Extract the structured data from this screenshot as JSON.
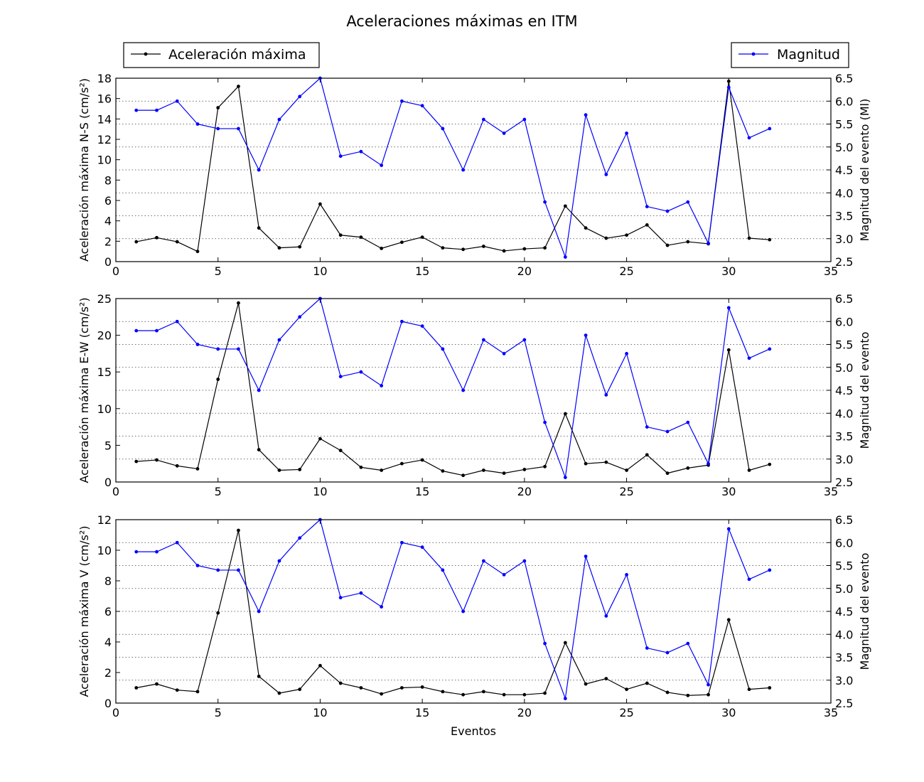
{
  "chart_data": {
    "type": "line",
    "title": "Aceleraciones máximas en ITM",
    "xlabel": "Eventos",
    "xlim": [
      0,
      35
    ],
    "xticks": [
      0,
      5,
      10,
      15,
      20,
      25,
      30,
      35
    ],
    "legend": {
      "left": {
        "label": "Aceleración máxima",
        "color": "#000000",
        "placement": "top-left"
      },
      "right": {
        "label": "Magnitud",
        "color": "#0000ff",
        "placement": "top-right"
      }
    },
    "x": [
      1,
      2,
      3,
      4,
      5,
      6,
      7,
      8,
      9,
      10,
      11,
      12,
      13,
      14,
      15,
      16,
      17,
      18,
      19,
      20,
      21,
      22,
      23,
      24,
      25,
      26,
      27,
      28,
      29,
      30,
      31,
      32
    ],
    "magnitude": {
      "name": "Magnitud",
      "color": "#0000ff",
      "values": [
        5.8,
        5.8,
        6.0,
        5.5,
        5.4,
        5.4,
        4.5,
        5.6,
        6.1,
        6.5,
        4.8,
        4.9,
        4.6,
        6.0,
        5.9,
        5.4,
        4.5,
        5.6,
        5.3,
        5.6,
        3.8,
        2.6,
        5.7,
        4.4,
        5.3,
        3.7,
        3.6,
        3.8,
        2.9,
        6.3,
        5.2,
        5.4
      ]
    },
    "panels": [
      {
        "ylabel": "Aceleración máxima N-S (cm/s²)",
        "ylim": [
          0,
          18
        ],
        "yticks": [
          0,
          2,
          4,
          6,
          8,
          10,
          12,
          14,
          16,
          18
        ],
        "y2label": "Magnitud del evento (Ml)",
        "y2lim": [
          2.5,
          6.5
        ],
        "y2ticks": [
          "2.5",
          "3.0",
          "3.5",
          "4.0",
          "4.5",
          "5.0",
          "5.5",
          "6.0",
          "6.5"
        ],
        "series": [
          {
            "name": "Aceleración máxima",
            "color": "#000000",
            "values": [
              1.95,
              2.35,
              1.95,
              1.0,
              15.1,
              17.2,
              3.3,
              1.35,
              1.45,
              5.65,
              2.6,
              2.4,
              1.3,
              1.9,
              2.4,
              1.35,
              1.2,
              1.5,
              1.05,
              1.25,
              1.35,
              5.45,
              3.3,
              2.3,
              2.6,
              3.6,
              1.6,
              1.95,
              1.75,
              17.7,
              2.3,
              2.15
            ]
          }
        ]
      },
      {
        "ylabel": "Aceleración máxima E-W (cm/s²)",
        "ylim": [
          0,
          25
        ],
        "yticks": [
          0,
          5,
          10,
          15,
          20,
          25
        ],
        "y2label": "Magnitud del evento",
        "y2lim": [
          2.5,
          6.5
        ],
        "y2ticks": [
          "2.5",
          "3.0",
          "3.5",
          "4.0",
          "4.5",
          "5.0",
          "5.5",
          "6.0",
          "6.5"
        ],
        "series": [
          {
            "name": "Aceleración máxima",
            "color": "#000000",
            "values": [
              2.8,
              3.0,
              2.2,
              1.8,
              14.0,
              24.4,
              4.4,
              1.6,
              1.7,
              5.9,
              4.3,
              2.0,
              1.6,
              2.5,
              3.0,
              1.5,
              0.9,
              1.6,
              1.2,
              1.7,
              2.1,
              9.3,
              2.5,
              2.7,
              1.6,
              3.7,
              1.2,
              1.9,
              2.3,
              18.0,
              1.6,
              2.4
            ]
          }
        ]
      },
      {
        "ylabel": "Aceleración máxima V (cm/s²)",
        "ylim": [
          0,
          12
        ],
        "yticks": [
          0,
          2,
          4,
          6,
          8,
          10,
          12
        ],
        "y2label": "Magnitud del evento",
        "y2lim": [
          2.5,
          6.5
        ],
        "y2ticks": [
          "2.5",
          "3.0",
          "3.5",
          "4.0",
          "4.5",
          "5.0",
          "5.5",
          "6.0",
          "6.5"
        ],
        "series": [
          {
            "name": "Aceleración máxima",
            "color": "#000000",
            "values": [
              1.0,
              1.25,
              0.85,
              0.75,
              5.9,
              11.3,
              1.75,
              0.65,
              0.9,
              2.45,
              1.3,
              1.0,
              0.6,
              1.0,
              1.05,
              0.75,
              0.55,
              0.75,
              0.55,
              0.55,
              0.65,
              3.95,
              1.25,
              1.6,
              0.9,
              1.3,
              0.7,
              0.5,
              0.55,
              5.45,
              0.9,
              1.0
            ]
          }
        ]
      }
    ]
  }
}
